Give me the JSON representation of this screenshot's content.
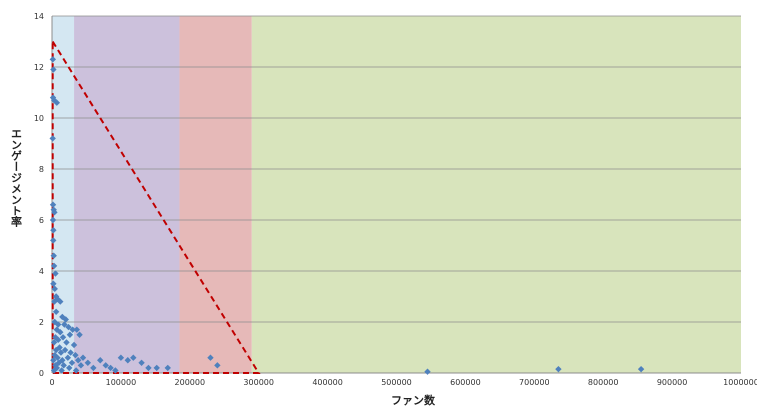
{
  "chart_data": {
    "type": "scatter",
    "xlabel": "ファン数",
    "ylabel": "エンゲージメント率",
    "xlim": [
      0,
      1000000
    ],
    "ylim": [
      0,
      14
    ],
    "x_ticks": [
      0,
      100000,
      200000,
      300000,
      400000,
      500000,
      600000,
      700000,
      800000,
      900000,
      1000000
    ],
    "y_ticks": [
      0,
      2,
      4,
      6,
      8,
      10,
      12,
      14
    ],
    "grid": "horizontal",
    "marker_color": "#4f81bd",
    "background_bands": [
      {
        "x_from": 0,
        "x_to": 32000,
        "color": "#d4e7f2"
      },
      {
        "x_from": 32000,
        "x_to": 185000,
        "color": "#ccc1dc"
      },
      {
        "x_from": 185000,
        "x_to": 290000,
        "color": "#e6b9b8"
      },
      {
        "x_from": 290000,
        "x_to": 1000000,
        "color": "#d8e4bc"
      }
    ],
    "reference_shape": {
      "style": "dashed",
      "color": "#c00000",
      "points": [
        [
          1000,
          13
        ],
        [
          300000,
          0
        ],
        [
          1000,
          0
        ]
      ]
    },
    "points": [
      [
        1200,
        12.3
      ],
      [
        2000,
        11.9
      ],
      [
        1500,
        10.8
      ],
      [
        3000,
        10.7
      ],
      [
        7000,
        10.6
      ],
      [
        1000,
        9.2
      ],
      [
        1500,
        6.6
      ],
      [
        2500,
        6.4
      ],
      [
        3500,
        6.3
      ],
      [
        1500,
        6.0
      ],
      [
        2000,
        5.6
      ],
      [
        1800,
        5.2
      ],
      [
        2500,
        4.6
      ],
      [
        3000,
        4.2
      ],
      [
        5000,
        3.9
      ],
      [
        2000,
        3.5
      ],
      [
        4000,
        3.3
      ],
      [
        6000,
        3.0
      ],
      [
        8000,
        2.9
      ],
      [
        3500,
        2.8
      ],
      [
        12000,
        2.8
      ],
      [
        6000,
        2.4
      ],
      [
        15000,
        2.2
      ],
      [
        20000,
        2.1
      ],
      [
        4000,
        2.0
      ],
      [
        9000,
        1.9
      ],
      [
        18000,
        1.9
      ],
      [
        24000,
        1.8
      ],
      [
        7000,
        1.7
      ],
      [
        30000,
        1.7
      ],
      [
        36000,
        1.7
      ],
      [
        12000,
        1.6
      ],
      [
        26000,
        1.5
      ],
      [
        40000,
        1.5
      ],
      [
        5000,
        1.4
      ],
      [
        16000,
        1.4
      ],
      [
        9000,
        1.3
      ],
      [
        21000,
        1.2
      ],
      [
        3000,
        1.2
      ],
      [
        32000,
        1.1
      ],
      [
        11000,
        1.0
      ],
      [
        6000,
        0.9
      ],
      [
        19000,
        0.9
      ],
      [
        27000,
        0.8
      ],
      [
        13000,
        0.8
      ],
      [
        4000,
        0.7
      ],
      [
        34000,
        0.7
      ],
      [
        45000,
        0.6
      ],
      [
        8000,
        0.6
      ],
      [
        23000,
        0.6
      ],
      [
        15000,
        0.5
      ],
      [
        2000,
        0.5
      ],
      [
        38000,
        0.5
      ],
      [
        10000,
        0.4
      ],
      [
        29000,
        0.4
      ],
      [
        52000,
        0.4
      ],
      [
        5000,
        0.3
      ],
      [
        17000,
        0.3
      ],
      [
        42000,
        0.3
      ],
      [
        7000,
        0.2
      ],
      [
        25000,
        0.2
      ],
      [
        60000,
        0.2
      ],
      [
        3000,
        0.1
      ],
      [
        14000,
        0.1
      ],
      [
        35000,
        0.1
      ],
      [
        70000,
        0.5
      ],
      [
        78000,
        0.3
      ],
      [
        85000,
        0.2
      ],
      [
        92000,
        0.1
      ],
      [
        100000,
        0.6
      ],
      [
        110000,
        0.5
      ],
      [
        118000,
        0.6
      ],
      [
        130000,
        0.4
      ],
      [
        140000,
        0.2
      ],
      [
        152000,
        0.2
      ],
      [
        168000,
        0.2
      ],
      [
        230000,
        0.6
      ],
      [
        240000,
        0.3
      ],
      [
        545000,
        0.05
      ],
      [
        735000,
        0.15
      ],
      [
        855000,
        0.15
      ]
    ]
  }
}
